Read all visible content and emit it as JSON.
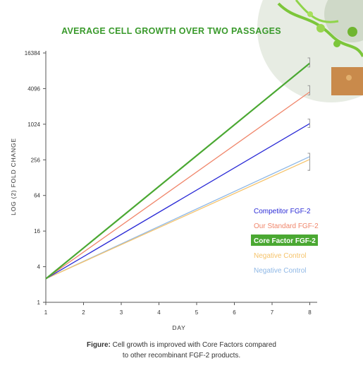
{
  "caption": {
    "label": "Figure:",
    "line1": "Cell growth is improved with Core Factors compared",
    "line2": "to other recombinant FGF-2 products."
  },
  "chart_data": {
    "type": "line",
    "title": "AVERAGE CELL GROWTH OVER TWO PASSAGES",
    "xlabel": "DAY",
    "ylabel": "LOG (2) FOLD CHANGE",
    "x_ticks": [
      1,
      2,
      3,
      4,
      5,
      6,
      7,
      8
    ],
    "y_ticks": [
      1,
      4,
      16,
      64,
      256,
      1024,
      4096,
      16384
    ],
    "y_scale": "log2",
    "xlim": [
      1,
      8.2
    ],
    "ylim": [
      1,
      16384
    ],
    "grid": false,
    "legend_position": "right",
    "x": [
      1,
      8
    ],
    "series": [
      {
        "name": "Competitor FGF-2",
        "color": "#2b2bd6",
        "values": [
          2.5,
          1050
        ],
        "error": [
          900,
          1250
        ]
      },
      {
        "name": "Our Standard FGF-2",
        "color": "#f0866b",
        "values": [
          2.5,
          3600
        ],
        "error": [
          3200,
          4600
        ]
      },
      {
        "name": "Core Factor FGF-2",
        "color": "#4aa832",
        "values": [
          2.5,
          11000
        ],
        "error": [
          9500,
          13500
        ],
        "highlighted": true
      },
      {
        "name": "Negative Control",
        "color": "#f5c36b",
        "values": [
          2.5,
          260
        ],
        "error": [
          170,
          330
        ]
      },
      {
        "name": "Negative Control",
        "color": "#8fb8e6",
        "values": [
          2.5,
          290
        ],
        "error": [
          170,
          330
        ]
      }
    ],
    "colors": {
      "title": "#3a9a2c",
      "axis": "#555555",
      "error_bar": "#999999"
    }
  }
}
